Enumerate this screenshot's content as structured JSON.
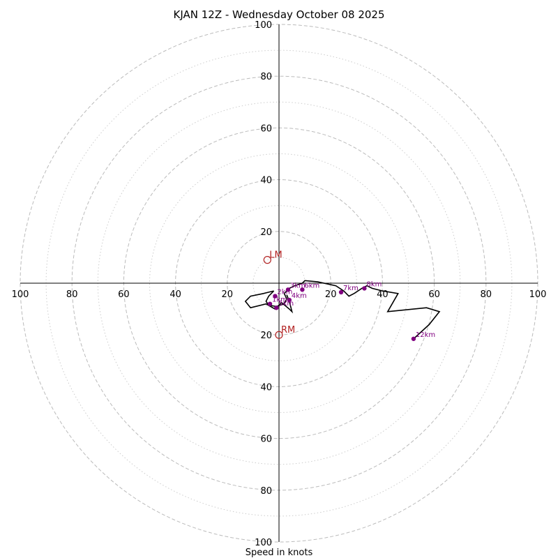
{
  "chart_data": {
    "type": "hodograph",
    "title": "KJAN 12Z - Wednesday October 08 2025",
    "xlabel": "Speed in knots",
    "range_knots": 100,
    "ring_major": [
      20,
      40,
      60,
      80,
      100
    ],
    "ring_minor": [
      10,
      30,
      50,
      70,
      90
    ],
    "tick_labels": {
      "left": [
        "100",
        "80",
        "60",
        "40",
        "20"
      ],
      "right": [
        "20",
        "40",
        "60",
        "80",
        "100"
      ],
      "up": [
        "20",
        "40",
        "60",
        "80",
        "100"
      ],
      "down": [
        "20",
        "40",
        "60",
        "80",
        "100"
      ]
    },
    "trace": [
      [
        -2,
        -3
      ],
      [
        -4,
        -5
      ],
      [
        -5,
        -7
      ],
      [
        -4,
        -8.5
      ],
      [
        -1,
        -9
      ],
      [
        2,
        -8
      ],
      [
        3,
        -6
      ],
      [
        2,
        -4
      ],
      [
        3,
        -3
      ],
      [
        4,
        -2
      ],
      [
        6,
        -1
      ],
      [
        9,
        0
      ],
      [
        10,
        1
      ],
      [
        15,
        0.5
      ],
      [
        22,
        -1
      ],
      [
        25,
        -3
      ],
      [
        27,
        -5
      ],
      [
        29,
        -4
      ],
      [
        32,
        -2
      ],
      [
        34,
        -1
      ],
      [
        36,
        -2
      ],
      [
        40,
        -3
      ],
      [
        46,
        -4
      ],
      [
        42,
        -11
      ],
      [
        57,
        -9.5
      ],
      [
        62,
        -11
      ],
      [
        58,
        -16
      ],
      [
        52,
        -21.5
      ]
    ],
    "trace_extra": [
      [
        -2,
        -3
      ],
      [
        -6,
        -4
      ],
      [
        -11,
        -5
      ],
      [
        -13,
        -7
      ],
      [
        -11,
        -9.5
      ],
      [
        -5,
        -8
      ],
      [
        -1.5,
        -10
      ],
      [
        1,
        -7.5
      ],
      [
        4,
        -10
      ],
      [
        5,
        -11
      ],
      [
        4,
        -7
      ],
      [
        3,
        -4.5
      ]
    ],
    "height_markers": [
      {
        "label": "1km",
        "u": -3.5,
        "v": -8
      },
      {
        "label": "2km",
        "u": -1.5,
        "v": -5
      },
      {
        "label": "3km",
        "u": 3.5,
        "v": -2.5
      },
      {
        "label": "4km",
        "u": 4,
        "v": -6.5
      },
      {
        "label": "5km",
        "u": -1,
        "v": -9.5
      },
      {
        "label": "6km",
        "u": 9,
        "v": -2.5
      },
      {
        "label": "7km",
        "u": 24,
        "v": -3.5
      },
      {
        "label": "8km",
        "u": 33,
        "v": -2
      },
      {
        "label": "12km",
        "u": 52,
        "v": -21.5
      }
    ],
    "storm_motion": [
      {
        "label": "LM",
        "u": -4.5,
        "v": 9
      },
      {
        "label": "RM",
        "u": 0,
        "v": -20
      }
    ],
    "colors": {
      "trace": "#000000",
      "markers": "#800080",
      "storm_motion": "#b22222",
      "grid": "#bbbbbb"
    }
  }
}
